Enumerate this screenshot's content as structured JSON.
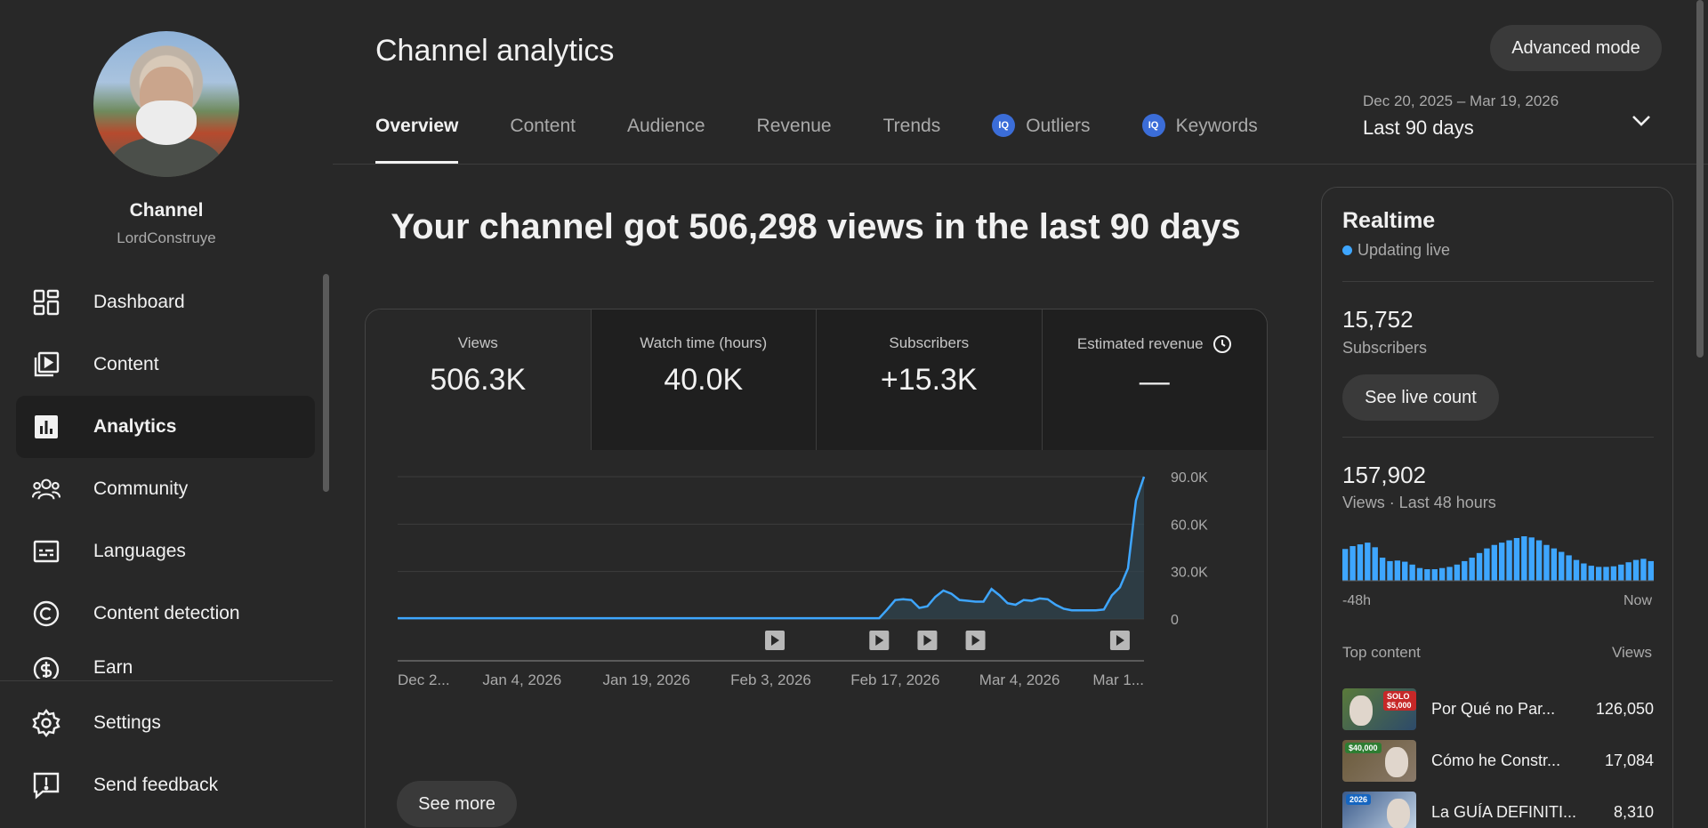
{
  "sidebar": {
    "channel_name": "Channel",
    "channel_handle": "LordConstruye",
    "items": [
      {
        "label": "Dashboard",
        "icon": "dashboard-icon"
      },
      {
        "label": "Content",
        "icon": "content-icon"
      },
      {
        "label": "Analytics",
        "icon": "analytics-icon",
        "active": true
      },
      {
        "label": "Community",
        "icon": "community-icon"
      },
      {
        "label": "Languages",
        "icon": "languages-icon"
      },
      {
        "label": "Content detection",
        "icon": "content-detection-icon"
      },
      {
        "label": "Earn",
        "icon": "earn-icon"
      }
    ],
    "bottom_items": [
      {
        "label": "Settings",
        "icon": "gear-icon"
      },
      {
        "label": "Send feedback",
        "icon": "feedback-icon"
      }
    ]
  },
  "header": {
    "title": "Channel analytics",
    "advanced_mode": "Advanced mode",
    "tabs": [
      "Overview",
      "Content",
      "Audience",
      "Revenue",
      "Trends",
      "Outliers",
      "Keywords"
    ],
    "active_tab": "Overview",
    "date_range": "Dec 20, 2025 – Mar 19, 2026",
    "date_label": "Last 90 days"
  },
  "main": {
    "headline": "Your channel got 506,298 views in the last 90 days",
    "metrics": [
      {
        "label": "Views",
        "value": "506.3K"
      },
      {
        "label": "Watch time (hours)",
        "value": "40.0K"
      },
      {
        "label": "Subscribers",
        "value": "+15.3K"
      },
      {
        "label": "Estimated revenue",
        "value": "—"
      }
    ],
    "see_more": "See more"
  },
  "chart_data": {
    "type": "area",
    "x_tick_labels": [
      "Dec 2...",
      "Jan 4, 2026",
      "Jan 19, 2026",
      "Feb 3, 2026",
      "Feb 17, 2026",
      "Mar 4, 2026",
      "Mar 1..."
    ],
    "y_tick_labels": [
      "90.0K",
      "60.0K",
      "30.0K",
      "0"
    ],
    "ylim": [
      0,
      90000
    ],
    "values": [
      500,
      500,
      500,
      500,
      500,
      500,
      500,
      500,
      500,
      500,
      500,
      500,
      500,
      500,
      500,
      500,
      500,
      500,
      500,
      500,
      500,
      500,
      500,
      500,
      500,
      500,
      500,
      500,
      500,
      500,
      500,
      500,
      500,
      500,
      500,
      500,
      500,
      500,
      500,
      500,
      500,
      500,
      500,
      500,
      500,
      500,
      500,
      500,
      500,
      500,
      500,
      500,
      500,
      500,
      500,
      500,
      500,
      500,
      500,
      500,
      500,
      6000,
      12000,
      12500,
      12000,
      7000,
      8000,
      14000,
      18000,
      16000,
      12000,
      11500,
      11000,
      11000,
      19000,
      15000,
      10000,
      9000,
      12000,
      11500,
      13000,
      12500,
      9000,
      6500,
      5500,
      5500,
      5500,
      5500,
      6000,
      15000,
      20000,
      32000,
      75000,
      90000
    ],
    "publish_markers": [
      47,
      60,
      66,
      72,
      90
    ]
  },
  "realtime": {
    "title": "Realtime",
    "live_label": "Updating live",
    "subscribers": "15,752",
    "subscribers_label": "Subscribers",
    "live_count_btn": "See live count",
    "views": "157,902",
    "views_label": "Views · Last 48 hours",
    "bars": [
      55,
      60,
      63,
      66,
      58,
      40,
      34,
      35,
      33,
      28,
      22,
      20,
      20,
      22,
      24,
      28,
      34,
      40,
      48,
      56,
      62,
      66,
      70,
      74,
      77,
      75,
      70,
      62,
      56,
      50,
      44,
      36,
      30,
      26,
      24,
      24,
      25,
      28,
      32,
      36,
      38,
      34
    ],
    "axis_start": "-48h",
    "axis_end": "Now",
    "top_content_label": "Top content",
    "top_views_label": "Views",
    "top_content": [
      {
        "title": "Por Qué no Par...",
        "views": "126,050",
        "badge": "SOLO $5,000"
      },
      {
        "title": "Cómo he Constr...",
        "views": "17,084",
        "badge": "$40,000"
      },
      {
        "title": "La GUÍA DEFINITI...",
        "views": "8,310",
        "badge": "2026"
      }
    ]
  }
}
